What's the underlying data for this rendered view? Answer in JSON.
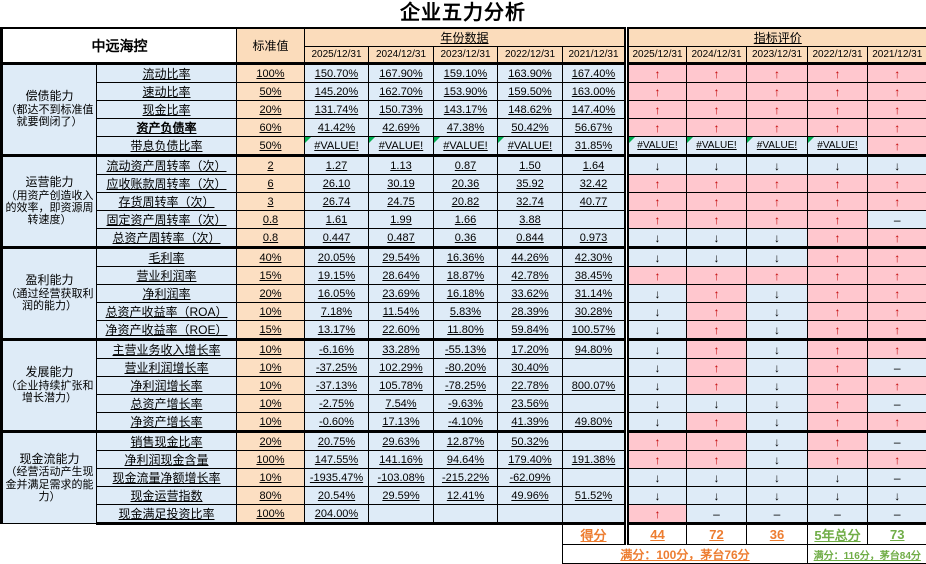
{
  "title": "企业五力分析",
  "header": {
    "company": "中远海控",
    "std_label": "标准值",
    "years_label": "年份数据",
    "eval_label": "指标评价",
    "dates": [
      "2025/12/31",
      "2024/12/31",
      "2023/12/31",
      "2022/12/31",
      "2021/12/31"
    ]
  },
  "symbols": {
    "up": "↑",
    "down": "↓",
    "dash": "–",
    "err": "#VALUE!"
  },
  "colors": {
    "pink": "#FFC7CE",
    "light_blue": "#DEEBF7",
    "peach": "#FBDCBB",
    "arrow_red": "#C00000",
    "score_orange": "#ED7D31",
    "score_green": "#70AD47",
    "error_triangle_green": "#00B050"
  },
  "groups": [
    {
      "name": "偿债能力",
      "desc": "（都达不到标准值就要倒闭了）",
      "rows": [
        {
          "label": "流动比率",
          "std": "100%",
          "values": [
            "150.70%",
            "167.90%",
            "159.10%",
            "163.90%",
            "167.40%"
          ],
          "evals": [
            "up",
            "up",
            "up",
            "up",
            "up"
          ]
        },
        {
          "label": "速动比率",
          "std": "50%",
          "values": [
            "145.20%",
            "162.70%",
            "153.90%",
            "159.50%",
            "163.00%"
          ],
          "evals": [
            "up",
            "up",
            "up",
            "up",
            "up"
          ]
        },
        {
          "label": "现金比率",
          "std": "20%",
          "values": [
            "131.74%",
            "150.73%",
            "143.17%",
            "148.62%",
            "147.40%"
          ],
          "evals": [
            "up",
            "up",
            "up",
            "up",
            "up"
          ]
        },
        {
          "label": "资产负债率",
          "bold": true,
          "std": "60%",
          "values": [
            "41.42%",
            "42.69%",
            "47.38%",
            "50.42%",
            "56.67%"
          ],
          "evals": [
            "up",
            "up",
            "up",
            "up",
            "up"
          ]
        },
        {
          "label": "带息负债比率",
          "std": "50%",
          "values": [
            "#VALUE!",
            "#VALUE!",
            "#VALUE!",
            "#VALUE!",
            "31.85%"
          ],
          "evals": [
            "err",
            "err",
            "err",
            "err",
            "up"
          ]
        }
      ]
    },
    {
      "name": "运营能力",
      "desc": "（用资产创造收入的效率，即资源周转速度）",
      "rows": [
        {
          "label": "流动资产周转率（次）",
          "std": "2",
          "values": [
            "1.27",
            "1.13",
            "0.87",
            "1.50",
            "1.64"
          ],
          "evals": [
            "down",
            "down",
            "down",
            "down",
            "down"
          ]
        },
        {
          "label": "应收账款周转率（次）",
          "std": "6",
          "values": [
            "26.10",
            "30.19",
            "20.36",
            "35.92",
            "32.42"
          ],
          "evals": [
            "up",
            "up",
            "up",
            "up",
            "up"
          ]
        },
        {
          "label": "存货周转率（次）",
          "std": "3",
          "values": [
            "26.74",
            "24.75",
            "20.82",
            "32.74",
            "40.77"
          ],
          "evals": [
            "up",
            "up",
            "up",
            "up",
            "up"
          ]
        },
        {
          "label": "固定资产周转率（次）",
          "std": "0.8",
          "values": [
            "1.61",
            "1.99",
            "1.66",
            "3.88",
            ""
          ],
          "evals": [
            "up",
            "up",
            "up",
            "up",
            "dash"
          ]
        },
        {
          "label": "总资产周转率（次）",
          "std": "0.8",
          "values": [
            "0.447",
            "0.487",
            "0.36",
            "0.844",
            "0.973"
          ],
          "evals": [
            "down",
            "down",
            "down",
            "up",
            "up"
          ]
        }
      ]
    },
    {
      "name": "盈利能力",
      "desc": "（通过经营获取利润的能力）",
      "rows": [
        {
          "label": "毛利率",
          "std": "40%",
          "values": [
            "20.05%",
            "29.54%",
            "16.36%",
            "44.26%",
            "42.30%"
          ],
          "evals": [
            "down",
            "down",
            "down",
            "up",
            "up"
          ]
        },
        {
          "label": "营业利润率",
          "std": "15%",
          "values": [
            "19.15%",
            "28.64%",
            "18.87%",
            "42.78%",
            "38.45%"
          ],
          "evals": [
            "up",
            "up",
            "up",
            "up",
            "up"
          ]
        },
        {
          "label": "净利润率",
          "std": "20%",
          "values": [
            "16.05%",
            "23.69%",
            "16.18%",
            "33.62%",
            "31.14%"
          ],
          "evals": [
            "down",
            "up",
            "down",
            "up",
            "up"
          ]
        },
        {
          "label": "总资产收益率（ROA）",
          "std": "10%",
          "values": [
            "7.18%",
            "11.54%",
            "5.83%",
            "28.39%",
            "30.28%"
          ],
          "evals": [
            "down",
            "up",
            "down",
            "up",
            "up"
          ]
        },
        {
          "label": "净资产收益率（ROE）",
          "std": "15%",
          "values": [
            "13.17%",
            "22.60%",
            "11.80%",
            "59.84%",
            "100.57%"
          ],
          "evals": [
            "down",
            "up",
            "down",
            "up",
            "up"
          ]
        }
      ]
    },
    {
      "name": "发展能力",
      "desc": "（企业持续扩张和增长潜力）",
      "rows": [
        {
          "label": "主营业务收入增长率",
          "std": "10%",
          "values": [
            "-6.16%",
            "33.28%",
            "-55.13%",
            "17.20%",
            "94.80%"
          ],
          "evals": [
            "down",
            "up",
            "down",
            "up",
            "up"
          ]
        },
        {
          "label": "营业利润增长率",
          "std": "10%",
          "values": [
            "-37.25%",
            "102.29%",
            "-80.20%",
            "30.40%",
            ""
          ],
          "evals": [
            "down",
            "up",
            "down",
            "up",
            "dash"
          ]
        },
        {
          "label": "净利润增长率",
          "std": "10%",
          "values": [
            "-37.13%",
            "105.78%",
            "-78.25%",
            "22.78%",
            "800.07%"
          ],
          "evals": [
            "down",
            "up",
            "down",
            "up",
            "up"
          ]
        },
        {
          "label": "总资产增长率",
          "std": "10%",
          "values": [
            "-2.75%",
            "7.54%",
            "-9.63%",
            "23.56%",
            ""
          ],
          "evals": [
            "down",
            "down",
            "down",
            "up",
            "dash"
          ]
        },
        {
          "label": "净资产增长率",
          "std": "10%",
          "values": [
            "-0.60%",
            "17.13%",
            "-4.10%",
            "41.39%",
            "49.80%"
          ],
          "evals": [
            "down",
            "up",
            "down",
            "up",
            "up"
          ]
        }
      ]
    },
    {
      "name": "现金流能力",
      "desc": "（经营活动产生现金并满足需求的能力）",
      "rows": [
        {
          "label": "销售现金比率",
          "std": "20%",
          "values": [
            "20.75%",
            "29.63%",
            "12.87%",
            "50.32%",
            ""
          ],
          "evals": [
            "up",
            "up",
            "down",
            "up",
            "dash"
          ]
        },
        {
          "label": "净利润现金含量",
          "std": "100%",
          "values": [
            "147.55%",
            "141.16%",
            "94.64%",
            "179.40%",
            "191.38%"
          ],
          "evals": [
            "up",
            "up",
            "down",
            "up",
            "up"
          ]
        },
        {
          "label": "现金流量净额增长率",
          "std": "10%",
          "values": [
            "-1935.47%",
            "-103.08%",
            "-215.22%",
            "-62.09%",
            ""
          ],
          "evals": [
            "down",
            "down",
            "down",
            "down",
            "dash"
          ]
        },
        {
          "label": "现金运营指数",
          "std": "80%",
          "values": [
            "20.54%",
            "29.59%",
            "12.41%",
            "49.96%",
            "51.52%"
          ],
          "evals": [
            "down",
            "down",
            "down",
            "down",
            "down"
          ]
        },
        {
          "label": "现金满足投资比率",
          "std": "100%",
          "values": [
            "204.00%",
            "",
            "",
            "",
            ""
          ],
          "evals": [
            "up",
            "dash",
            "dash",
            "dash",
            "dash"
          ]
        }
      ]
    }
  ],
  "score": {
    "label": "得分",
    "values": [
      "44",
      "72",
      "36"
    ],
    "total_label": "5年总分",
    "total_value": "73",
    "note_orange": "满分：100分，茅台76分",
    "note_green": "满分：116分，茅台84分"
  }
}
